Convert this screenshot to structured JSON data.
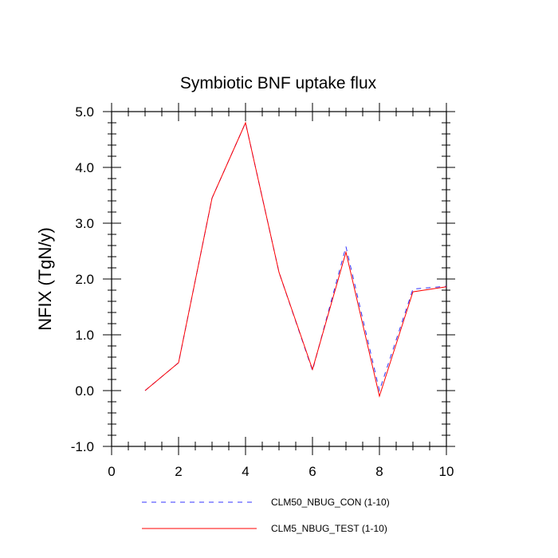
{
  "chart_data": {
    "type": "line",
    "title": "Symbiotic BNF uptake flux",
    "ylabel": "NFIX  (TgN/y)",
    "xlabel": "",
    "xlim": [
      0,
      10
    ],
    "ylim": [
      -1.0,
      5.0
    ],
    "x_ticks": [
      0,
      2,
      4,
      6,
      8,
      10
    ],
    "x_tick_labels": [
      "0",
      "2",
      "4",
      "6",
      "8",
      "10"
    ],
    "y_ticks": [
      -1.0,
      0.0,
      1.0,
      2.0,
      3.0,
      4.0,
      5.0
    ],
    "y_tick_labels": [
      "-1.0",
      "0.0",
      "1.0",
      "2.0",
      "3.0",
      "4.0",
      "5.0"
    ],
    "grid": false,
    "legend_position": "bottom",
    "x": [
      1,
      2,
      3,
      4,
      5,
      6,
      7,
      8,
      9,
      10
    ],
    "series": [
      {
        "name": "CLM50_NBUG_CON (1-10)",
        "color": "#3333ff",
        "style": "dashed",
        "values": [
          0.0,
          0.5,
          3.45,
          4.8,
          2.12,
          0.36,
          2.58,
          0.0,
          1.82,
          1.87
        ]
      },
      {
        "name": "CLM5_NBUG_TEST (1-10)",
        "color": "#ff0000",
        "style": "solid",
        "values": [
          0.0,
          0.5,
          3.45,
          4.8,
          2.12,
          0.38,
          2.48,
          -0.1,
          1.77,
          1.86
        ]
      }
    ]
  }
}
